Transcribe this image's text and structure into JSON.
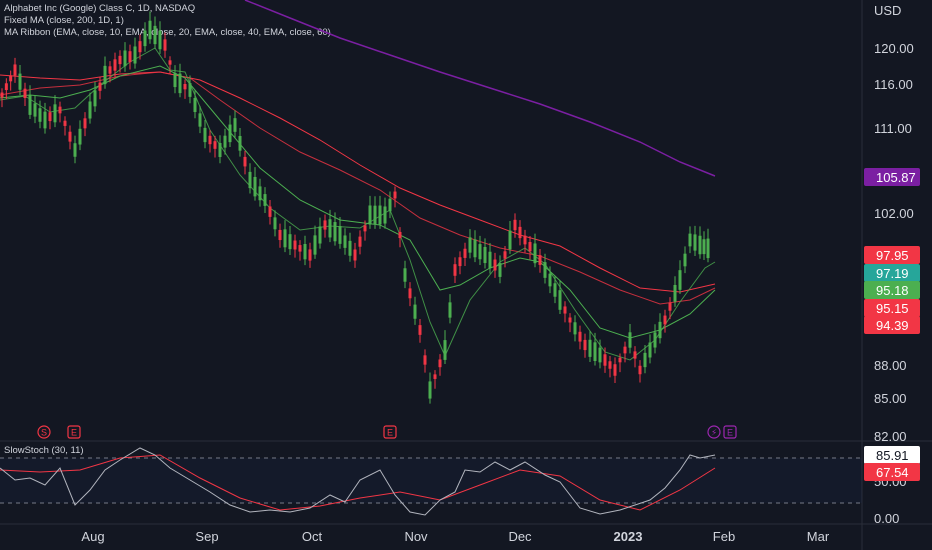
{
  "header": {
    "symbol_title": "Alphabet Inc (Google) Class C, 1D, NASDAQ",
    "indicator_1": "Fixed MA (close, 200, 1D, 1)",
    "indicator_2": "MA Ribbon (EMA, close, 10, EMA, close, 20, EMA, close, 40, EMA, close, 60)",
    "stoch_label": "SlowStoch (30, 11)"
  },
  "price_axis": {
    "currency": "USD",
    "ticks": [
      "120.00",
      "116.00",
      "111.00",
      "102.00",
      "88.00",
      "85.00",
      "82.00"
    ]
  },
  "badges": [
    {
      "label": "105.87",
      "color": "#7b1fa2"
    },
    {
      "label": "97.95",
      "color": "#f23645"
    },
    {
      "label": "97.19",
      "color": "#26a69a"
    },
    {
      "label": "95.18",
      "color": "#4caf50"
    },
    {
      "label": "95.15",
      "color": "#f23645"
    },
    {
      "label": "94.39",
      "color": "#f23645"
    }
  ],
  "stoch_axis": {
    "ticks": [
      "50.00",
      "0.00"
    ],
    "badges": [
      {
        "label": "85.91",
        "color": "#ffffff",
        "text_color": "#131722"
      },
      {
        "label": "67.54",
        "color": "#f23645",
        "text_color": "#ffffff"
      }
    ]
  },
  "time_axis": {
    "labels": [
      "Aug",
      "Sep",
      "Oct",
      "Nov",
      "Dec",
      "2023",
      "Feb",
      "Mar"
    ]
  },
  "events": [
    {
      "glyph": "S",
      "color": "#f23645"
    },
    {
      "glyph": "E",
      "color": "#f23645"
    },
    {
      "glyph": "E",
      "color": "#f23645"
    },
    {
      "glyph": "⚡",
      "color": "#9c27b0"
    },
    {
      "glyph": "E",
      "color": "#9c27b0"
    }
  ],
  "colors": {
    "up": "#4caf50",
    "down": "#f23645",
    "ma200": "#7b1fa2",
    "ema_fast": "#4caf50",
    "ema_slow": "#f23645",
    "stoch_k": "#b2b5be",
    "stoch_d": "#f23645"
  }
}
